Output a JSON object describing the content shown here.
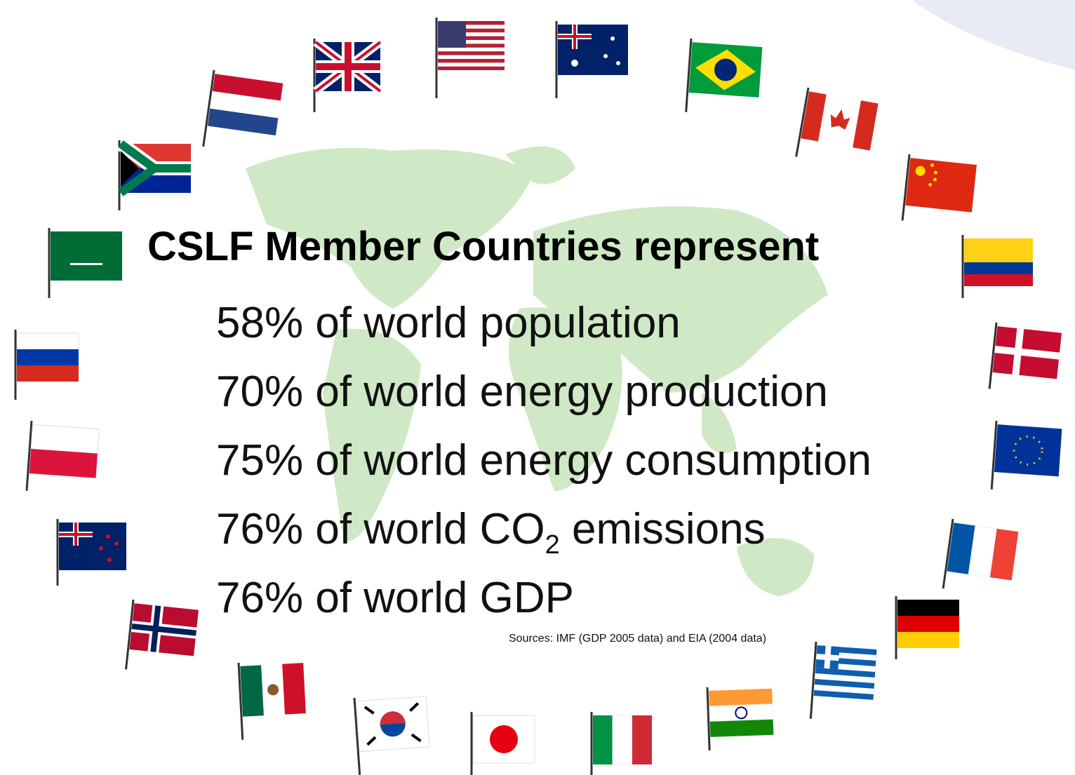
{
  "title": "CSLF Member Countries represent",
  "items": [
    "58% of world population",
    "70% of world energy production",
    "75% of world energy consumption",
    {
      "text": "76% of world CO",
      "subscript": "2",
      "rest": " emissions"
    },
    "76% of world GDP"
  ],
  "sources": "Sources: IMF (GDP 2005 data) and EIA (2004 data)"
}
